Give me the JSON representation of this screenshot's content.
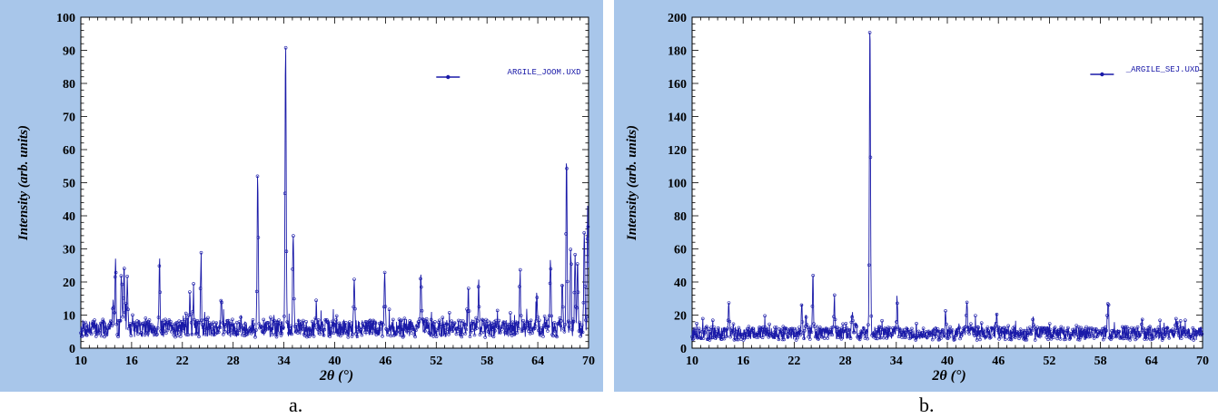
{
  "colors": {
    "frame": "#a8c6ea",
    "plot_background": "#ffffff",
    "series": "#1a1aa8",
    "text": "#000000"
  },
  "chart_data": [
    {
      "panel": "a",
      "type": "line",
      "title": "",
      "xlabel": "2θ (°)",
      "ylabel": "Intensity (arb. units)",
      "xlim": [
        10,
        70
      ],
      "ylim": [
        0,
        100
      ],
      "xticks": [
        10,
        16,
        22,
        28,
        34,
        40,
        46,
        52,
        58,
        64,
        70
      ],
      "yticks": [
        0,
        10,
        20,
        30,
        40,
        50,
        60,
        70,
        80,
        90,
        100
      ],
      "legend": {
        "position": "top-right",
        "label": "ARGILE_JOOM.UXD"
      },
      "grid": false,
      "caption": "a.",
      "baseline": 6,
      "series": [
        {
          "name": "ARGILE_JOOM.UXD",
          "peaks": [
            [
              13.8,
              15
            ],
            [
              14.1,
              27
            ],
            [
              14.8,
              23
            ],
            [
              15.1,
              24
            ],
            [
              15.5,
              20
            ],
            [
              19.3,
              26
            ],
            [
              22.9,
              16
            ],
            [
              23.3,
              14
            ],
            [
              24.2,
              28
            ],
            [
              26.6,
              17
            ],
            [
              30.9,
              53
            ],
            [
              34.2,
              94
            ],
            [
              35.1,
              35
            ],
            [
              37.8,
              12
            ],
            [
              42.3,
              22
            ],
            [
              45.9,
              24
            ],
            [
              50.2,
              22
            ],
            [
              55.8,
              18
            ],
            [
              57.0,
              19
            ],
            [
              61.9,
              23
            ],
            [
              63.9,
              17
            ],
            [
              65.5,
              29
            ],
            [
              66.9,
              22
            ],
            [
              67.4,
              59
            ],
            [
              67.9,
              30
            ],
            [
              68.4,
              27
            ],
            [
              68.7,
              29
            ],
            [
              69.5,
              37
            ],
            [
              69.9,
              45
            ]
          ]
        }
      ]
    },
    {
      "panel": "b",
      "type": "line",
      "title": "",
      "xlabel": "2θ (°)",
      "ylabel": "Intensity (arb. units)",
      "xlim": [
        10,
        70
      ],
      "ylim": [
        0,
        200
      ],
      "xticks": [
        10,
        16,
        22,
        28,
        34,
        40,
        46,
        52,
        58,
        64,
        70
      ],
      "yticks": [
        0,
        20,
        40,
        60,
        80,
        100,
        120,
        140,
        160,
        180,
        200
      ],
      "legend": {
        "position": "top-right",
        "label": "_ARGILE_SEJ.UXD"
      },
      "grid": false,
      "caption": "b.",
      "baseline": 9,
      "series": [
        {
          "name": "_ARGILE_SEJ.UXD",
          "peaks": [
            [
              14.3,
              27
            ],
            [
              22.9,
              26
            ],
            [
              23.4,
              22
            ],
            [
              24.2,
              46
            ],
            [
              26.7,
              26
            ],
            [
              28.8,
              22
            ],
            [
              29.2,
              19
            ],
            [
              30.9,
              200
            ],
            [
              34.1,
              29
            ],
            [
              39.8,
              20
            ],
            [
              42.3,
              25
            ],
            [
              45.8,
              25
            ],
            [
              50.1,
              20
            ],
            [
              58.9,
              28
            ],
            [
              62.9,
              16
            ],
            [
              67.0,
              15
            ]
          ]
        }
      ]
    }
  ]
}
